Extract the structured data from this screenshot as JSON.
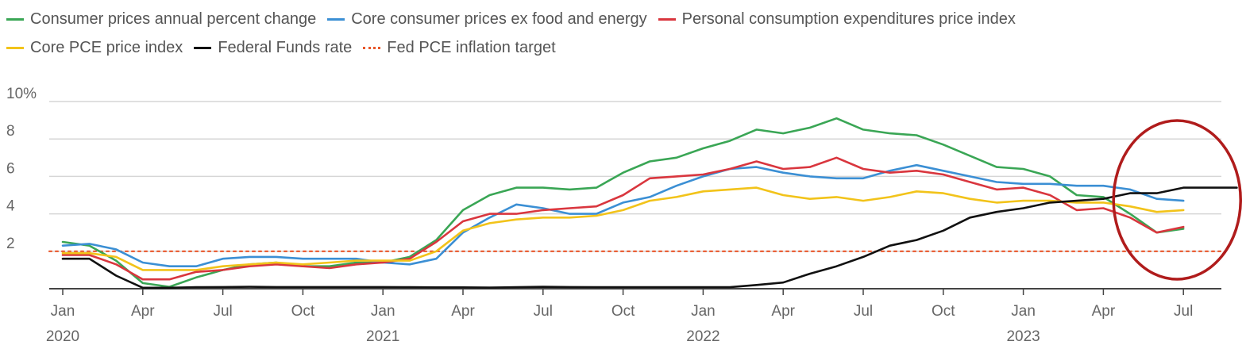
{
  "chart_data": {
    "type": "line",
    "title": "",
    "xlabel": "",
    "ylabel": "",
    "ylim": [
      0,
      10
    ],
    "grid": true,
    "legend_position": "top",
    "y_ticks": [
      {
        "value": 10,
        "label": "10%"
      },
      {
        "value": 8,
        "label": "8"
      },
      {
        "value": 6,
        "label": "6"
      },
      {
        "value": 4,
        "label": "4"
      },
      {
        "value": 2,
        "label": "2"
      }
    ],
    "x_ticks": [
      {
        "month": "2020-01",
        "label": "Jan",
        "year_label": "2020"
      },
      {
        "month": "2020-04",
        "label": "Apr",
        "year_label": ""
      },
      {
        "month": "2020-07",
        "label": "Jul",
        "year_label": ""
      },
      {
        "month": "2020-10",
        "label": "Oct",
        "year_label": ""
      },
      {
        "month": "2021-01",
        "label": "Jan",
        "year_label": "2021"
      },
      {
        "month": "2021-04",
        "label": "Apr",
        "year_label": ""
      },
      {
        "month": "2021-07",
        "label": "Jul",
        "year_label": ""
      },
      {
        "month": "2021-10",
        "label": "Oct",
        "year_label": ""
      },
      {
        "month": "2022-01",
        "label": "Jan",
        "year_label": "2022"
      },
      {
        "month": "2022-04",
        "label": "Apr",
        "year_label": ""
      },
      {
        "month": "2022-07",
        "label": "Jul",
        "year_label": ""
      },
      {
        "month": "2022-10",
        "label": "Oct",
        "year_label": ""
      },
      {
        "month": "2023-01",
        "label": "Jan",
        "year_label": "2023"
      },
      {
        "month": "2023-04",
        "label": "Apr",
        "year_label": ""
      },
      {
        "month": "2023-07",
        "label": "Jul",
        "year_label": ""
      }
    ],
    "x_start": "2020-01",
    "series": [
      {
        "name": "Consumer prices annual percent change",
        "color": "#3aa655",
        "style": "solid",
        "start": "2020-01",
        "values": [
          2.5,
          2.3,
          1.5,
          0.3,
          0.1,
          0.6,
          1.0,
          1.3,
          1.4,
          1.2,
          1.2,
          1.4,
          1.4,
          1.7,
          2.6,
          4.2,
          5.0,
          5.4,
          5.4,
          5.3,
          5.4,
          6.2,
          6.8,
          7.0,
          7.5,
          7.9,
          8.5,
          8.3,
          8.6,
          9.1,
          8.5,
          8.3,
          8.2,
          7.7,
          7.1,
          6.5,
          6.4,
          6.0,
          5.0,
          4.9,
          4.0,
          3.0,
          3.2
        ]
      },
      {
        "name": "Core consumer prices ex food and energy",
        "color": "#3b8fd4",
        "style": "solid",
        "start": "2020-01",
        "values": [
          2.3,
          2.4,
          2.1,
          1.4,
          1.2,
          1.2,
          1.6,
          1.7,
          1.7,
          1.6,
          1.6,
          1.6,
          1.4,
          1.3,
          1.6,
          3.0,
          3.8,
          4.5,
          4.3,
          4.0,
          4.0,
          4.6,
          4.9,
          5.5,
          6.0,
          6.4,
          6.5,
          6.2,
          6.0,
          5.9,
          5.9,
          6.3,
          6.6,
          6.3,
          6.0,
          5.7,
          5.6,
          5.6,
          5.5,
          5.5,
          5.3,
          4.8,
          4.7
        ]
      },
      {
        "name": "Personal consumption expenditures price index",
        "color": "#d9363e",
        "style": "solid",
        "start": "2020-01",
        "values": [
          1.8,
          1.8,
          1.3,
          0.5,
          0.5,
          0.9,
          1.0,
          1.2,
          1.3,
          1.2,
          1.1,
          1.3,
          1.4,
          1.6,
          2.5,
          3.6,
          4.0,
          4.0,
          4.2,
          4.3,
          4.4,
          5.0,
          5.9,
          6.0,
          6.1,
          6.4,
          6.8,
          6.4,
          6.5,
          7.0,
          6.4,
          6.2,
          6.3,
          6.1,
          5.7,
          5.3,
          5.4,
          5.0,
          4.2,
          4.3,
          3.8,
          3.0,
          3.3
        ]
      },
      {
        "name": "Core PCE price index",
        "color": "#f2c31a",
        "style": "solid",
        "start": "2020-01",
        "values": [
          1.9,
          1.9,
          1.7,
          1.0,
          1.0,
          1.0,
          1.2,
          1.3,
          1.4,
          1.3,
          1.4,
          1.5,
          1.5,
          1.5,
          2.0,
          3.1,
          3.5,
          3.7,
          3.8,
          3.8,
          3.9,
          4.2,
          4.7,
          4.9,
          5.2,
          5.3,
          5.4,
          5.0,
          4.8,
          4.9,
          4.7,
          4.9,
          5.2,
          5.1,
          4.8,
          4.6,
          4.7,
          4.7,
          4.6,
          4.6,
          4.4,
          4.1,
          4.2
        ]
      },
      {
        "name": "Federal Funds rate",
        "color": "#111111",
        "style": "solid",
        "start": "2020-01",
        "values": [
          1.6,
          1.6,
          0.7,
          0.05,
          0.05,
          0.08,
          0.09,
          0.1,
          0.09,
          0.09,
          0.09,
          0.09,
          0.09,
          0.08,
          0.07,
          0.07,
          0.06,
          0.08,
          0.1,
          0.09,
          0.08,
          0.08,
          0.08,
          0.08,
          0.08,
          0.08,
          0.2,
          0.33,
          0.8,
          1.2,
          1.7,
          2.3,
          2.6,
          3.1,
          3.8,
          4.1,
          4.3,
          4.6,
          4.7,
          4.8,
          5.1,
          5.1,
          5.4,
          5.4,
          5.4
        ]
      },
      {
        "name": "Fed PCE inflation target",
        "color": "#e8562a",
        "style": "dotted",
        "start": "2020-01",
        "values": [
          2,
          2
        ]
      }
    ],
    "annotation": {
      "type": "circle",
      "color": "#b01c1c",
      "around": "2023-07"
    }
  }
}
